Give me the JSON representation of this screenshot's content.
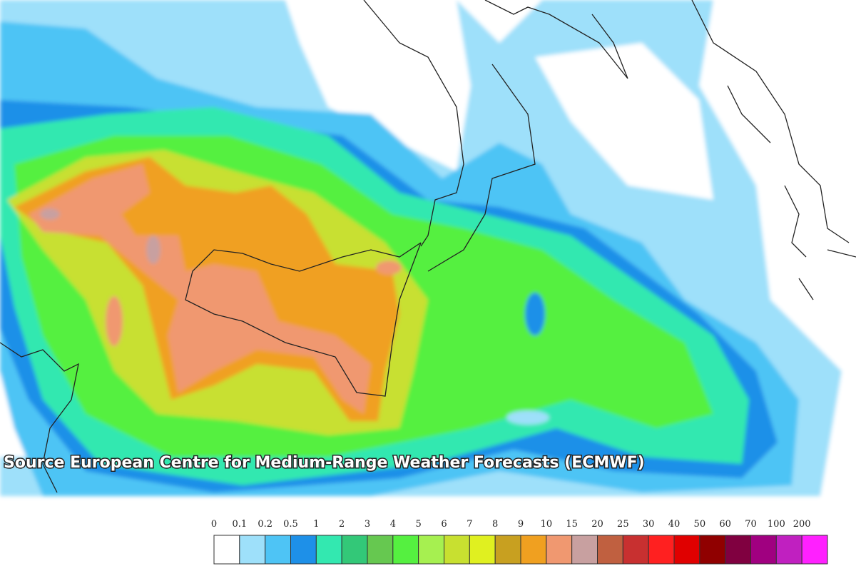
{
  "map": {
    "caption": "Source European Centre for Medium-Range Weather Forecasts (ECMWF)",
    "legend": {
      "labels": [
        "0",
        "0.1",
        "0.2",
        "0.5",
        "1",
        "2",
        "3",
        "4",
        "5",
        "6",
        "7",
        "8",
        "9",
        "10",
        "15",
        "20",
        "25",
        "30",
        "40",
        "50",
        "60",
        "70",
        "100",
        "200"
      ],
      "colors": [
        "#ffffff",
        "#9ee0fa",
        "#4ec4f5",
        "#1e90e8",
        "#33e8b0",
        "#33c878",
        "#66c850",
        "#55f040",
        "#a6f050",
        "#c8e030",
        "#e0f020",
        "#c8a020",
        "#f0a020",
        "#f09870",
        "#c8a0a0",
        "#c06040",
        "#c83030",
        "#ff2020",
        "#e00000",
        "#900000",
        "#800040",
        "#a00080",
        "#c020c0",
        "#ff20ff"
      ]
    }
  }
}
